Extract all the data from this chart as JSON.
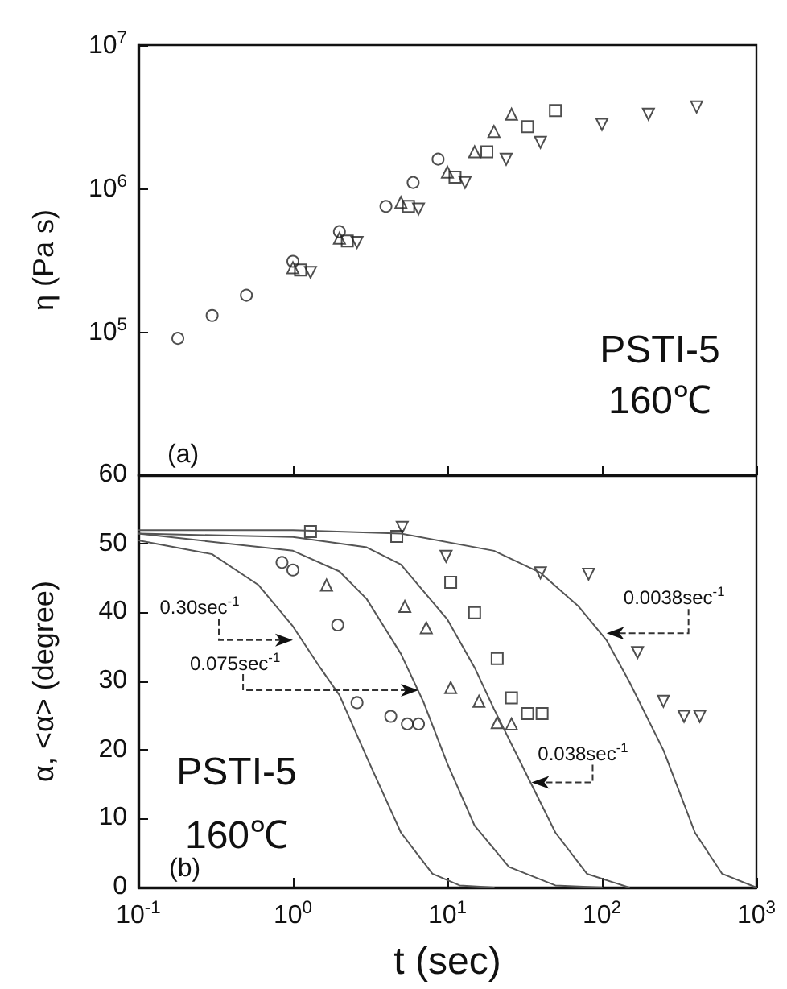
{
  "chart_data": [
    {
      "type": "scatter",
      "ylabel": "η (Pa s)",
      "annotations": [
        "(a)",
        "PSTI-5",
        "160℃"
      ],
      "xlim": [
        0.1,
        1000
      ],
      "ylim": [
        10000,
        10000000
      ],
      "xticks": [
        {
          "value": 0.1,
          "label": null
        },
        {
          "value": 1,
          "label": null
        },
        {
          "value": 10,
          "label": null
        },
        {
          "value": 100,
          "label": null
        },
        {
          "value": 1000,
          "label": null
        }
      ],
      "yticks": [
        {
          "value": 100000,
          "label": "10$^{5}$"
        },
        {
          "value": 1000000,
          "label": "10$^{6}$"
        },
        {
          "value": 10000000,
          "label": "10$^{7}$"
        }
      ],
      "log": "xy",
      "grid": false,
      "tick_labels": "y",
      "series": [
        {
          "color": "#222222",
          "marker": "circle",
          "x": [
            0.18,
            0.3,
            0.5,
            1,
            2,
            4,
            6,
            8.7
          ],
          "values": [
            90000,
            130000,
            180000,
            310000,
            500000,
            750000,
            1100000,
            1600000
          ]
        },
        {
          "color": "#222222",
          "marker": "triangle",
          "x": [
            1,
            2,
            5,
            10,
            15,
            20,
            26
          ],
          "values": [
            280000,
            450000,
            800000,
            1300000,
            1800000,
            2500000,
            3300000
          ]
        },
        {
          "color": "#222222",
          "marker": "square",
          "x": [
            1.12,
            2.25,
            5.6,
            11.2,
            18,
            33,
            50
          ],
          "values": [
            270000,
            430000,
            750000,
            1200000,
            1800000,
            2700000,
            3500000
          ]
        },
        {
          "color": "#222222",
          "marker": "triangle-down",
          "x": [
            1.3,
            2.6,
            6.5,
            13,
            24,
            40,
            100,
            200,
            410
          ],
          "values": [
            260000,
            420000,
            720000,
            1100000,
            1600000,
            2100000,
            2800000,
            3300000,
            3700000
          ]
        }
      ]
    },
    {
      "type": "scatter",
      "xlabel": "t (sec)",
      "ylabel": "α, <α> (degree)",
      "annotations": [
        "PSTI-5",
        "160℃",
        "(b)",
        {
          "text": "0.30sec$^{-1}$",
          "x": 1.0,
          "y": 36
        },
        {
          "text": "0.075sec$^{-1}$",
          "x": 6.5,
          "y": 28.7
        },
        {
          "text": "0.038sec$^{-1}$",
          "x": 35,
          "y": 15.3
        },
        {
          "text": "0.0038sec$^{-1}$",
          "x": 107,
          "y": 37
        }
      ],
      "xlim": [
        0.1,
        1000
      ],
      "ylim": [
        0,
        60
      ],
      "xticks": [
        {
          "value": 0.1,
          "label": "10$^{-1}$"
        },
        {
          "value": 1,
          "label": "10$^{0}$"
        },
        {
          "value": 10,
          "label": "10$^{1}$"
        },
        {
          "value": 100,
          "label": "10$^{2}$"
        },
        {
          "value": 1000,
          "label": "10$^{3}$"
        }
      ],
      "yticks": [
        0,
        10,
        20,
        30,
        40,
        50,
        60
      ],
      "log": "x",
      "grid": false,
      "series": [
        {
          "color": "#222222",
          "marker": "circle",
          "x": [
            0.85,
            1.0,
            1.95,
            2.6,
            4.3,
            5.5,
            6.5
          ],
          "values": [
            47.3,
            46.2,
            38.2,
            26.9,
            24.9,
            23.8,
            23.8
          ]
        },
        {
          "color": "#222222",
          "marker": "triangle",
          "x": [
            1.65,
            5.3,
            7.3,
            10.5,
            16,
            21,
            26
          ],
          "values": [
            44,
            40.9,
            37.8,
            29.1,
            27.1,
            24,
            23.8
          ]
        },
        {
          "color": "#222222",
          "marker": "square",
          "x": [
            1.3,
            4.7,
            10.5,
            15,
            21,
            26,
            33,
            41
          ],
          "values": [
            51.8,
            51.1,
            44.4,
            40,
            33.3,
            27.6,
            25.3,
            25.3
          ]
        },
        {
          "color": "#222222",
          "marker": "triangle-down",
          "x": [
            5.1,
            9.8,
            40,
            82,
            170,
            250,
            340,
            430
          ],
          "values": [
            52.4,
            48.2,
            45.8,
            45.6,
            34.2,
            27.1,
            24.9,
            24.9
          ]
        },
        {
          "type": "line",
          "color": "#555555",
          "x": [
            0.1,
            0.3,
            0.6,
            1,
            1.5,
            2,
            3,
            5,
            8,
            12,
            20
          ],
          "values": [
            50.5,
            48.5,
            44,
            38,
            32,
            28,
            19,
            8,
            2,
            0.3,
            0
          ]
        },
        {
          "type": "line",
          "color": "#555555",
          "x": [
            0.1,
            1,
            2,
            3,
            5,
            7,
            10,
            15,
            25,
            50,
            100
          ],
          "values": [
            51.5,
            49,
            46,
            42,
            34,
            27,
            18,
            9,
            3,
            0.3,
            0
          ]
        },
        {
          "type": "line",
          "color": "#555555",
          "x": [
            0.1,
            1,
            3,
            5,
            10,
            15,
            20,
            35,
            50,
            80,
            150
          ],
          "values": [
            51.5,
            51,
            49.5,
            47,
            39,
            32,
            26,
            15,
            8,
            2,
            0
          ]
        },
        {
          "type": "line",
          "color": "#555555",
          "x": [
            0.1,
            1,
            5,
            20,
            40,
            70,
            107,
            150,
            250,
            400,
            600,
            1000
          ],
          "values": [
            52,
            52,
            51.5,
            49,
            45.8,
            41,
            36,
            30,
            20,
            8,
            2,
            0
          ]
        }
      ]
    }
  ]
}
